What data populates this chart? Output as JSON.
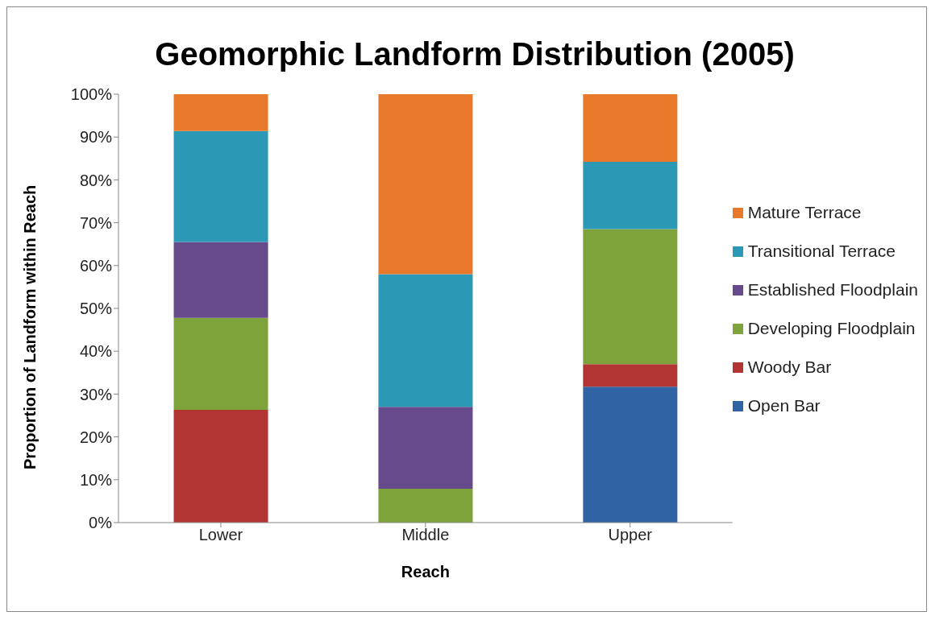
{
  "chart_data": {
    "type": "bar",
    "title": "Geomorphic Landform Distribution (2005)",
    "xlabel": "Reach",
    "ylabel": "Proportion of Landform within Reach",
    "categories": [
      "Lower",
      "Middle",
      "Upper"
    ],
    "stacked": true,
    "legend": "right",
    "grid": false,
    "ylim": [
      0,
      100
    ],
    "yticks": [
      {
        "value": 0,
        "label": "0%"
      },
      {
        "value": 10,
        "label": "10%"
      },
      {
        "value": 20,
        "label": "20%"
      },
      {
        "value": 30,
        "label": "30%"
      },
      {
        "value": 40,
        "label": "40%"
      },
      {
        "value": 50,
        "label": "50%"
      },
      {
        "value": 60,
        "label": "60%"
      },
      {
        "value": 70,
        "label": "70%"
      },
      {
        "value": 80,
        "label": "80%"
      },
      {
        "value": 90,
        "label": "90%"
      },
      {
        "value": 100,
        "label": "100%"
      }
    ],
    "series": [
      {
        "name": "Open Bar",
        "color": "#2f63a3",
        "values": [
          0,
          0,
          31.7
        ]
      },
      {
        "name": "Woody Bar",
        "color": "#b23533",
        "values": [
          26.3,
          0,
          5.3
        ]
      },
      {
        "name": "Developing Floodplain",
        "color": "#7ea33a",
        "values": [
          21.5,
          7.9,
          31.5
        ]
      },
      {
        "name": "Established Floodplain",
        "color": "#674a8c",
        "values": [
          17.7,
          19.1,
          0
        ]
      },
      {
        "name": "Transitional Terrace",
        "color": "#2b98b5",
        "values": [
          25.9,
          31.0,
          15.7
        ]
      },
      {
        "name": "Mature Terrace",
        "color": "#e8792a",
        "values": [
          8.6,
          42.0,
          15.8
        ]
      }
    ]
  }
}
